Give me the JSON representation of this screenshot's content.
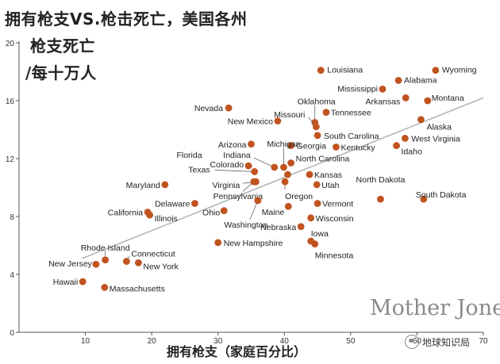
{
  "header": {
    "title_line1": "拥有枪支VS.枪击死亡，美国各州",
    "title_line2": "枪支死亡",
    "title_line3": "/每十万人"
  },
  "footer": {
    "brand": "Mother Jones",
    "watermark": "地球知识局"
  },
  "chart_data": {
    "type": "scatter",
    "title": "拥有枪支VS.枪击死亡，美国各州",
    "xlabel": "拥有枪支（家庭百分比）",
    "ylabel": "枪支死亡 /每十万人",
    "xlim": [
      0,
      70
    ],
    "ylim": [
      0,
      20
    ],
    "x_ticks": [
      "10",
      "20",
      "30",
      "40",
      "50",
      "60",
      "70"
    ],
    "y_ticks": [
      "0",
      "4",
      "8",
      "12",
      "16",
      "20"
    ],
    "grid": false,
    "marker_color": "#c0531f",
    "trendline": {
      "x": [
        9.5,
        70
      ],
      "y": [
        5.1,
        16.2
      ],
      "color": "#b5b5b5"
    },
    "points": [
      {
        "state": "Louisiana",
        "x": 45.5,
        "y": 18.1
      },
      {
        "state": "Wyoming",
        "x": 62.8,
        "y": 18.1
      },
      {
        "state": "Alabama",
        "x": 57.2,
        "y": 17.4
      },
      {
        "state": "Mississippi",
        "x": 54.8,
        "y": 16.8
      },
      {
        "state": "Arkansas",
        "x": 58.3,
        "y": 16.2
      },
      {
        "state": "Montana",
        "x": 61.6,
        "y": 16.0
      },
      {
        "state": "Oklahoma",
        "x": 44.6,
        "y": 14.5
      },
      {
        "state": "Missouri",
        "x": 44.8,
        "y": 14.2
      },
      {
        "state": "Tennessee",
        "x": 46.3,
        "y": 15.2
      },
      {
        "state": "Nevada",
        "x": 31.6,
        "y": 15.5
      },
      {
        "state": "New Mexico",
        "x": 39.0,
        "y": 14.6
      },
      {
        "state": "Alaska",
        "x": 60.6,
        "y": 14.7
      },
      {
        "state": "South Carolina",
        "x": 45.0,
        "y": 13.6
      },
      {
        "state": "West Virginia",
        "x": 58.2,
        "y": 13.4
      },
      {
        "state": "Georgia",
        "x": 41.0,
        "y": 12.9
      },
      {
        "state": "Kentucky",
        "x": 47.8,
        "y": 12.8
      },
      {
        "state": "Idaho",
        "x": 56.9,
        "y": 12.9
      },
      {
        "state": "Arizona",
        "x": 35.0,
        "y": 13.0
      },
      {
        "state": "Michigan",
        "x": 39.9,
        "y": 11.4
      },
      {
        "state": "Indiana",
        "x": 38.5,
        "y": 11.4
      },
      {
        "state": "North Carolina",
        "x": 41.0,
        "y": 11.7
      },
      {
        "state": "Colorado",
        "x": 34.6,
        "y": 11.5
      },
      {
        "state": "Kansas",
        "x": 43.8,
        "y": 10.9
      },
      {
        "state": "Texas",
        "x": 35.5,
        "y": 11.1
      },
      {
        "state": "Florida",
        "x": 40.5,
        "y": 10.9
      },
      {
        "state": "Utah",
        "x": 44.9,
        "y": 10.2
      },
      {
        "state": "Maryland",
        "x": 22.0,
        "y": 10.2
      },
      {
        "state": "Virginia",
        "x": 35.7,
        "y": 10.4
      },
      {
        "state": "Oregon",
        "x": 40.1,
        "y": 10.4
      },
      {
        "state": "Pennsylvania",
        "x": 35.4,
        "y": 10.4
      },
      {
        "state": "North Dakota",
        "x": 54.5,
        "y": 9.2
      },
      {
        "state": "South Dakota",
        "x": 61.0,
        "y": 9.2
      },
      {
        "state": "Delaware",
        "x": 26.5,
        "y": 8.9
      },
      {
        "state": "Washington",
        "x": 36.0,
        "y": 9.1
      },
      {
        "state": "Vermont",
        "x": 45.0,
        "y": 8.9
      },
      {
        "state": "Maine",
        "x": 40.6,
        "y": 8.7
      },
      {
        "state": "Ohio",
        "x": 30.9,
        "y": 8.4
      },
      {
        "state": "California",
        "x": 19.4,
        "y": 8.3
      },
      {
        "state": "Illinois",
        "x": 19.7,
        "y": 8.1
      },
      {
        "state": "Wisconsin",
        "x": 44.0,
        "y": 7.9
      },
      {
        "state": "Nebraska",
        "x": 42.5,
        "y": 7.3
      },
      {
        "state": "New Hampshire",
        "x": 30.0,
        "y": 6.2
      },
      {
        "state": "Iowa",
        "x": 44.0,
        "y": 6.3
      },
      {
        "state": "Minnesota",
        "x": 44.6,
        "y": 6.1
      },
      {
        "state": "Rhode Island",
        "x": 13.0,
        "y": 5.0
      },
      {
        "state": "Connecticut",
        "x": 16.2,
        "y": 4.9
      },
      {
        "state": "New Jersey",
        "x": 11.6,
        "y": 4.7
      },
      {
        "state": "New York",
        "x": 18.0,
        "y": 4.8
      },
      {
        "state": "Hawaii",
        "x": 9.6,
        "y": 3.5
      },
      {
        "state": "Massachusetts",
        "x": 12.9,
        "y": 3.1
      }
    ]
  }
}
